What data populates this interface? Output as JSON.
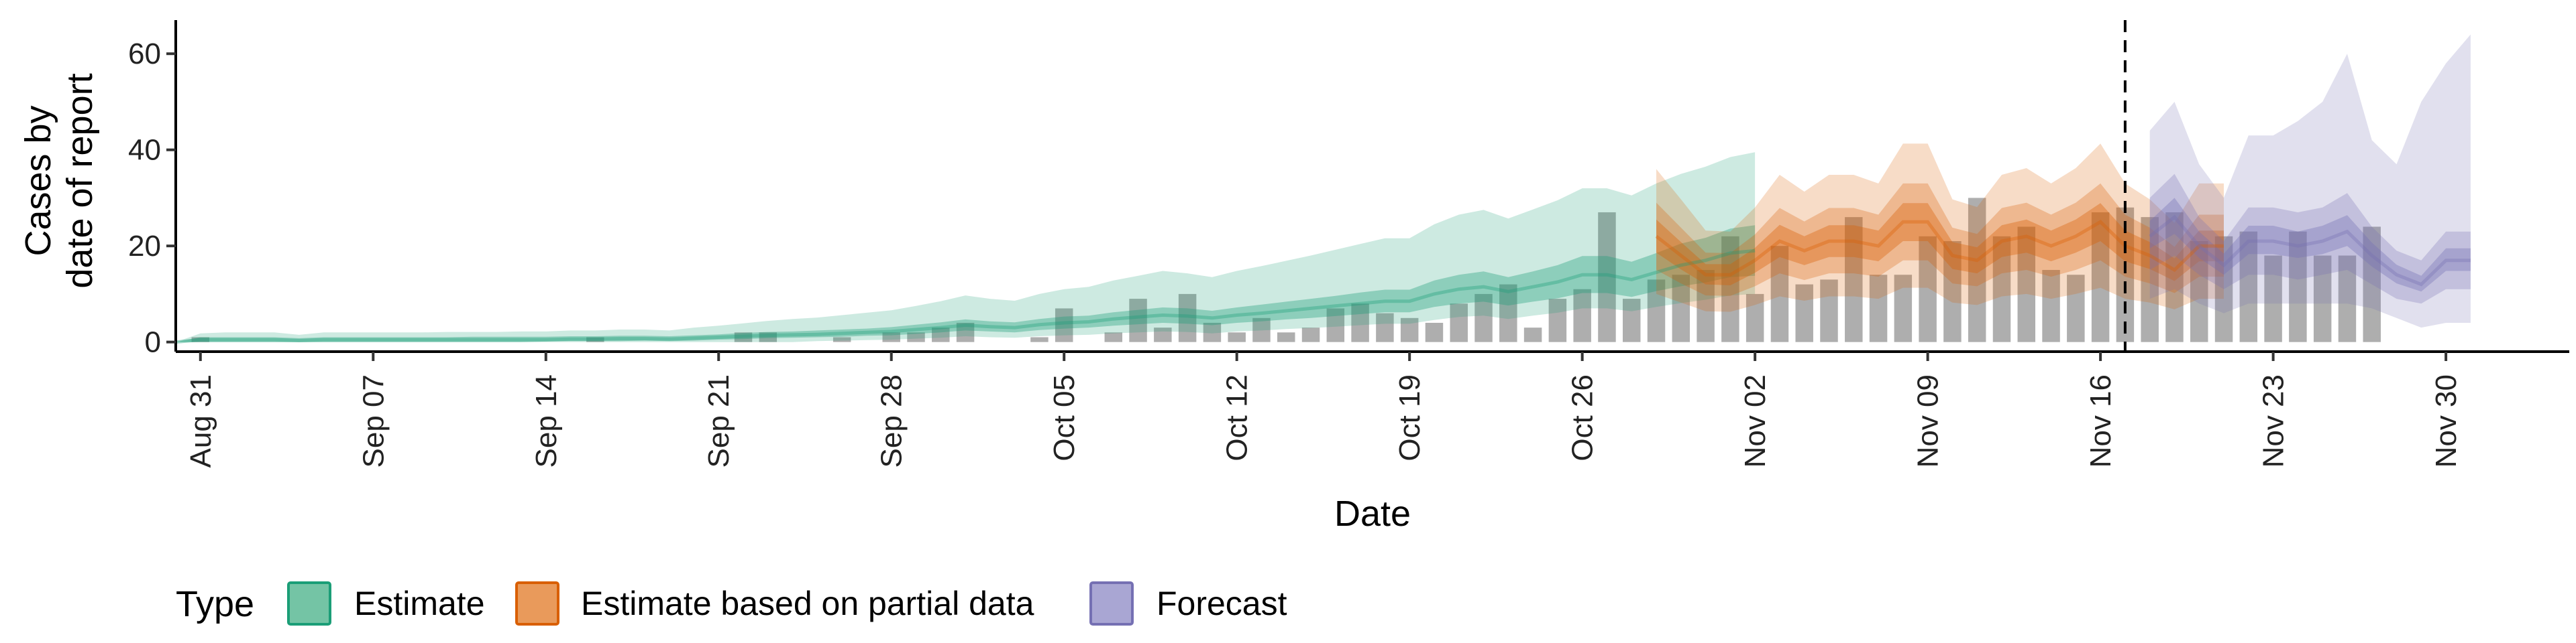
{
  "chart_data": {
    "type": "area",
    "xlabel": "Date",
    "ylabel_lines": [
      "Cases by",
      "date of report"
    ],
    "x_start": "Aug 30",
    "x_end": "Dec 05",
    "ylim": [
      -2,
      67
    ],
    "y_ticks": [
      0,
      20,
      40,
      60
    ],
    "x_ticks": [
      {
        "label": "Aug 31",
        "day": 1
      },
      {
        "label": "Sep 07",
        "day": 8
      },
      {
        "label": "Sep 14",
        "day": 15
      },
      {
        "label": "Sep 21",
        "day": 22
      },
      {
        "label": "Sep 28",
        "day": 29
      },
      {
        "label": "Oct 05",
        "day": 36
      },
      {
        "label": "Oct 12",
        "day": 43
      },
      {
        "label": "Oct 19",
        "day": 50
      },
      {
        "label": "Oct 26",
        "day": 57
      },
      {
        "label": "Nov 02",
        "day": 64
      },
      {
        "label": "Nov 09",
        "day": 71
      },
      {
        "label": "Nov 16",
        "day": 78
      },
      {
        "label": "Nov 23",
        "day": 85
      },
      {
        "label": "Nov 30",
        "day": 92
      }
    ],
    "forecast_cutoff": "Nov 17",
    "reported_cases": {
      "start": "Aug 31",
      "values": [
        1,
        0,
        0,
        0,
        0,
        0,
        0,
        0,
        0,
        0,
        0,
        0,
        0,
        0,
        0,
        0,
        1,
        0,
        0,
        0,
        0,
        0,
        2,
        2,
        0,
        0,
        1,
        0,
        2,
        2,
        3,
        4,
        0,
        0,
        1,
        7,
        0,
        2,
        9,
        3,
        10,
        4,
        2,
        5,
        2,
        3,
        7,
        8,
        6,
        5,
        4,
        8,
        10,
        12,
        3,
        9,
        11,
        27,
        9,
        13,
        14,
        15,
        22,
        10,
        20,
        12,
        13,
        26,
        14,
        14,
        22,
        21,
        30,
        22,
        24,
        15,
        14,
        27,
        28,
        26,
        27,
        21,
        22,
        23,
        18,
        23,
        18,
        18,
        24
      ]
    },
    "series": [
      {
        "name": "Estimate",
        "color": "#1b9e77",
        "start": "Aug 30",
        "median": [
          0,
          0.5,
          0.5,
          0.5,
          0.5,
          0.3,
          0.5,
          0.5,
          0.5,
          0.5,
          0.5,
          0.5,
          0.5,
          0.5,
          0.5,
          0.5,
          0.6,
          0.6,
          0.7,
          0.7,
          0.6,
          0.8,
          1,
          1.2,
          1.4,
          1.5,
          1.6,
          1.8,
          2,
          2.2,
          2.6,
          3,
          3.5,
          3.2,
          3,
          3.6,
          4,
          4.2,
          4.8,
          5.2,
          5.6,
          5.4,
          5,
          5.6,
          6,
          6.5,
          7,
          7.5,
          8,
          8.5,
          8.5,
          10,
          11,
          11.5,
          10.5,
          11.5,
          12.5,
          14,
          14,
          13,
          14.5,
          16,
          17,
          18.5,
          19
        ],
        "inner": [
          [
            0,
            0
          ],
          [
            0,
            1
          ],
          [
            0,
            1
          ],
          [
            0,
            1
          ],
          [
            0,
            1
          ],
          [
            0,
            0.8
          ],
          [
            0,
            1
          ],
          [
            0,
            1
          ],
          [
            0,
            1
          ],
          [
            0,
            1
          ],
          [
            0,
            1
          ],
          [
            0,
            1
          ],
          [
            0,
            1.1
          ],
          [
            0,
            1.1
          ],
          [
            0,
            1.1
          ],
          [
            0.1,
            1.1
          ],
          [
            0.2,
            1.2
          ],
          [
            0.2,
            1.2
          ],
          [
            0.2,
            1.3
          ],
          [
            0.3,
            1.3
          ],
          [
            0.2,
            1.2
          ],
          [
            0.3,
            1.4
          ],
          [
            0.5,
            1.6
          ],
          [
            0.6,
            1.9
          ],
          [
            0.8,
            2.1
          ],
          [
            0.9,
            2.2
          ],
          [
            1,
            2.4
          ],
          [
            1.1,
            2.6
          ],
          [
            1.3,
            2.8
          ],
          [
            1.4,
            3.1
          ],
          [
            1.7,
            3.6
          ],
          [
            2,
            4.1
          ],
          [
            2.4,
            4.7
          ],
          [
            2.2,
            4.3
          ],
          [
            2,
            4.1
          ],
          [
            2.5,
            4.8
          ],
          [
            2.8,
            5.3
          ],
          [
            3,
            5.5
          ],
          [
            3.4,
            6.2
          ],
          [
            3.7,
            6.7
          ],
          [
            4,
            7.2
          ],
          [
            3.8,
            7
          ],
          [
            3.5,
            6.5
          ],
          [
            4,
            7.2
          ],
          [
            4.3,
            7.8
          ],
          [
            4.7,
            8.4
          ],
          [
            5,
            9
          ],
          [
            5.4,
            9.6
          ],
          [
            5.8,
            10.3
          ],
          [
            6.2,
            10.9
          ],
          [
            6.2,
            10.9
          ],
          [
            7.3,
            12.8
          ],
          [
            8,
            14
          ],
          [
            8.4,
            14.7
          ],
          [
            7.6,
            13.5
          ],
          [
            8.4,
            14.7
          ],
          [
            9.1,
            16
          ],
          [
            10.2,
            17.9
          ],
          [
            10.2,
            17.9
          ],
          [
            9.4,
            16.7
          ],
          [
            10.6,
            18.5
          ],
          [
            11.6,
            20.5
          ],
          [
            12.4,
            21.7
          ],
          [
            13.5,
            23.6
          ],
          [
            13.8,
            24.3
          ]
        ],
        "outer": [
          [
            0,
            0
          ],
          [
            0,
            1.8
          ],
          [
            0,
            2
          ],
          [
            0,
            2
          ],
          [
            0,
            2
          ],
          [
            0,
            1.5
          ],
          [
            0,
            2
          ],
          [
            0,
            2
          ],
          [
            0,
            2
          ],
          [
            0,
            2
          ],
          [
            0,
            2
          ],
          [
            0,
            2.1
          ],
          [
            0,
            2.1
          ],
          [
            0,
            2.1
          ],
          [
            0,
            2.2
          ],
          [
            0,
            2.2
          ],
          [
            0,
            2.4
          ],
          [
            0,
            2.4
          ],
          [
            0,
            2.6
          ],
          [
            0,
            2.6
          ],
          [
            0,
            2.4
          ],
          [
            0,
            3
          ],
          [
            0,
            3.4
          ],
          [
            0,
            3.9
          ],
          [
            0,
            4.4
          ],
          [
            0,
            4.8
          ],
          [
            0.2,
            5.1
          ],
          [
            0.3,
            5.6
          ],
          [
            0.4,
            6.1
          ],
          [
            0.5,
            6.6
          ],
          [
            0.7,
            7.5
          ],
          [
            0.9,
            8.5
          ],
          [
            1.2,
            9.7
          ],
          [
            1,
            9
          ],
          [
            0.9,
            8.6
          ],
          [
            1.2,
            10
          ],
          [
            1.4,
            11
          ],
          [
            1.5,
            11.5
          ],
          [
            1.8,
            12.8
          ],
          [
            2,
            13.8
          ],
          [
            2.2,
            14.8
          ],
          [
            2.1,
            14.3
          ],
          [
            1.8,
            13.5
          ],
          [
            2.2,
            14.8
          ],
          [
            2.4,
            15.8
          ],
          [
            2.7,
            16.9
          ],
          [
            2.9,
            18
          ],
          [
            3.2,
            19.2
          ],
          [
            3.5,
            20.4
          ],
          [
            3.8,
            21.6
          ],
          [
            3.8,
            21.6
          ],
          [
            4.6,
            24.5
          ],
          [
            5.2,
            26.5
          ],
          [
            5.5,
            27.5
          ],
          [
            4.8,
            25.7
          ],
          [
            5.5,
            27.6
          ],
          [
            6.1,
            29.5
          ],
          [
            7,
            32
          ],
          [
            7,
            32
          ],
          [
            6.4,
            30.5
          ],
          [
            7.3,
            33
          ],
          [
            8.1,
            35
          ],
          [
            8.8,
            36.5
          ],
          [
            9.7,
            38.5
          ],
          [
            10,
            39.5
          ]
        ]
      },
      {
        "name": "Estimate based on partial data",
        "color": "#d95f02",
        "start": "Oct 29",
        "median": [
          22,
          18,
          14,
          14,
          17,
          21,
          19,
          21,
          21,
          20,
          25,
          25,
          18,
          17,
          21,
          22,
          20,
          22,
          25,
          20,
          18,
          15,
          20,
          20
        ],
        "inner": [
          [
            18.6,
            25.5
          ],
          [
            15.1,
            20.8
          ],
          [
            12,
            16.2
          ],
          [
            11.8,
            16.2
          ],
          [
            14.4,
            19.6
          ],
          [
            17.7,
            24.4
          ],
          [
            16,
            22
          ],
          [
            17.7,
            24.3
          ],
          [
            17.7,
            24.3
          ],
          [
            16.8,
            23.2
          ],
          [
            21,
            28.9
          ],
          [
            21,
            28.9
          ],
          [
            15.2,
            20.8
          ],
          [
            14.3,
            19.7
          ],
          [
            17.7,
            24.3
          ],
          [
            18.6,
            25.5
          ],
          [
            16.8,
            23.2
          ],
          [
            18.6,
            25.5
          ],
          [
            21,
            28.9
          ],
          [
            16.8,
            23.2
          ],
          [
            15.2,
            20.8
          ],
          [
            12.7,
            17.4
          ],
          [
            16.8,
            23.2
          ],
          [
            16.8,
            23.2
          ]
        ],
        "mid": [
          [
            15,
            29
          ],
          [
            12.2,
            23.8
          ],
          [
            9.7,
            18.6
          ],
          [
            9.6,
            18.5
          ],
          [
            11.6,
            22.4
          ],
          [
            14.3,
            27.9
          ],
          [
            12.9,
            25.1
          ],
          [
            14.3,
            27.9
          ],
          [
            14.3,
            27.9
          ],
          [
            13.6,
            26.5
          ],
          [
            17,
            33
          ],
          [
            17,
            33
          ],
          [
            12.2,
            23.8
          ],
          [
            11.6,
            22.5
          ],
          [
            14.3,
            27.9
          ],
          [
            15,
            29
          ],
          [
            13.6,
            26.5
          ],
          [
            15,
            29
          ],
          [
            17,
            33
          ],
          [
            13.6,
            26.5
          ],
          [
            12.2,
            23.8
          ],
          [
            10.2,
            19.8
          ],
          [
            13.6,
            26.5
          ],
          [
            13.6,
            26.5
          ]
        ],
        "outer": [
          [
            10,
            36
          ],
          [
            8.2,
            29.7
          ],
          [
            6.4,
            23.2
          ],
          [
            6.3,
            23
          ],
          [
            7.7,
            28
          ],
          [
            9.5,
            34.8
          ],
          [
            8.6,
            31.3
          ],
          [
            9.5,
            34.8
          ],
          [
            9.5,
            34.8
          ],
          [
            9,
            33
          ],
          [
            11.3,
            41.3
          ],
          [
            11.3,
            41.3
          ],
          [
            8.2,
            29.7
          ],
          [
            7.7,
            28.1
          ],
          [
            9.5,
            34.8
          ],
          [
            10,
            36.2
          ],
          [
            9,
            33
          ],
          [
            10,
            36.2
          ],
          [
            11.3,
            41.3
          ],
          [
            9,
            33
          ],
          [
            8.2,
            29.7
          ],
          [
            6.8,
            24.8
          ],
          [
            9,
            33
          ],
          [
            9,
            33
          ]
        ]
      },
      {
        "name": "Forecast",
        "color": "#7570b3",
        "start": "Nov 18",
        "median": [
          22,
          26,
          20,
          16,
          21,
          21,
          20,
          21,
          23,
          18,
          14,
          12,
          17,
          17
        ],
        "inner": [
          [
            19.5,
            25.2
          ],
          [
            22.5,
            30
          ],
          [
            17.5,
            23
          ],
          [
            14,
            18.4
          ],
          [
            18.3,
            24.2
          ],
          [
            18.3,
            24.2
          ],
          [
            17.5,
            23
          ],
          [
            18.3,
            24.2
          ],
          [
            20,
            26.4
          ],
          [
            15.7,
            20.7
          ],
          [
            12.2,
            16.1
          ],
          [
            10.5,
            13.8
          ],
          [
            14.8,
            19.5
          ],
          [
            14.8,
            19.5
          ]
        ],
        "mid": [
          [
            15,
            30
          ],
          [
            18,
            35
          ],
          [
            14,
            26
          ],
          [
            11,
            21
          ],
          [
            14,
            28
          ],
          [
            14,
            28
          ],
          [
            13,
            27
          ],
          [
            14,
            28
          ],
          [
            15,
            31
          ],
          [
            12,
            24
          ],
          [
            9,
            19
          ],
          [
            8,
            17
          ],
          [
            11,
            23
          ],
          [
            11,
            23
          ]
        ],
        "outer": [
          [
            9,
            44
          ],
          [
            11,
            50
          ],
          [
            8,
            37
          ],
          [
            6,
            30
          ],
          [
            8,
            43
          ],
          [
            8,
            43
          ],
          [
            8,
            46
          ],
          [
            8,
            50
          ],
          [
            8,
            60
          ],
          [
            7,
            42
          ],
          [
            5,
            37
          ],
          [
            3,
            50
          ],
          [
            4,
            58
          ],
          [
            4,
            64
          ]
        ]
      }
    ]
  },
  "legend": {
    "title": "Type",
    "items": [
      {
        "label": "Estimate",
        "fill": "#74c4a5",
        "stroke": "#1b9e77"
      },
      {
        "label": "Estimate based on partial data",
        "fill": "#e99a5b",
        "stroke": "#d95f02"
      },
      {
        "label": "Forecast",
        "fill": "#a9a6d3",
        "stroke": "#7570b3"
      }
    ]
  }
}
